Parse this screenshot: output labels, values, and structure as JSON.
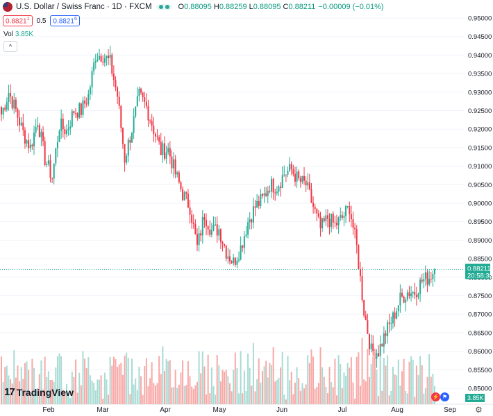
{
  "header": {
    "title": "U.S. Dollar / Swiss Franc · 1D · FXCM",
    "open_label": "O",
    "open": "0.88095",
    "high_label": "H",
    "high": "0.88259",
    "low_label": "L",
    "low": "0.88095",
    "close_label": "C",
    "close": "0.88211",
    "change": "−0.00009 (−0.01%)",
    "sell_price": "0.8821",
    "sell_sup": "1",
    "spread": "0.5",
    "buy_price": "0.8821",
    "buy_sup": "6",
    "vol_label": "Vol",
    "vol_value": "3.85K",
    "collapse_icon": "^"
  },
  "footer": {
    "logo_text": "TradingView",
    "logo_mark": "17"
  },
  "price_axis": {
    "labels": [
      "0.95000",
      "0.94500",
      "0.94000",
      "0.93500",
      "0.93000",
      "0.92500",
      "0.92000",
      "0.91500",
      "0.91000",
      "0.90500",
      "0.90000",
      "0.89500",
      "0.89000",
      "0.88500",
      "0.88000",
      "0.87500",
      "0.87000",
      "0.86500",
      "0.86000",
      "0.85500",
      "0.85000"
    ],
    "current_price": "0.88211",
    "countdown": "20:58:30",
    "volume_tag": "3.85K"
  },
  "time_axis": {
    "labels": [
      "Feb",
      "Mar",
      "Apr",
      "May",
      "Jun",
      "Jul",
      "Aug",
      "Sep"
    ]
  },
  "colors": {
    "up": "#22ab94",
    "down": "#f23645",
    "vol_up": "#a8dbd3",
    "vol_down": "#f7a9a7",
    "grid": "#f0f3fa",
    "text": "#131722"
  },
  "chart_data": {
    "type": "candlestick",
    "symbol": "U.S. Dollar / Swiss Franc",
    "timeframe": "1D",
    "source": "FXCM",
    "ylim": [
      0.848,
      0.9515
    ],
    "close_path": [
      [
        0,
        0.924
      ],
      [
        4,
        0.93
      ],
      [
        8,
        0.925
      ],
      [
        12,
        0.919
      ],
      [
        16,
        0.915
      ],
      [
        20,
        0.9225
      ],
      [
        24,
        0.912
      ],
      [
        28,
        0.907
      ],
      [
        32,
        0.921
      ],
      [
        36,
        0.9195
      ],
      [
        40,
        0.925
      ],
      [
        44,
        0.925
      ],
      [
        48,
        0.929
      ],
      [
        52,
        0.94
      ],
      [
        56,
        0.94
      ],
      [
        60,
        0.938
      ],
      [
        64,
        0.929
      ],
      [
        68,
        0.912
      ],
      [
        72,
        0.92
      ],
      [
        76,
        0.929
      ],
      [
        80,
        0.926
      ],
      [
        84,
        0.92
      ],
      [
        88,
        0.914
      ],
      [
        92,
        0.9145
      ],
      [
        96,
        0.908
      ],
      [
        100,
        0.9025
      ],
      [
        104,
        0.899
      ],
      [
        108,
        0.888
      ],
      [
        112,
        0.897
      ],
      [
        116,
        0.8925
      ],
      [
        120,
        0.893
      ],
      [
        124,
        0.887
      ],
      [
        128,
        0.884
      ],
      [
        132,
        0.888
      ],
      [
        136,
        0.895
      ],
      [
        140,
        0.899
      ],
      [
        144,
        0.901
      ],
      [
        148,
        0.905
      ],
      [
        152,
        0.9045
      ],
      [
        156,
        0.908
      ],
      [
        160,
        0.909
      ],
      [
        164,
        0.906
      ],
      [
        168,
        0.905
      ],
      [
        172,
        0.899
      ],
      [
        176,
        0.893
      ],
      [
        180,
        0.896
      ],
      [
        184,
        0.894
      ],
      [
        188,
        0.896
      ],
      [
        192,
        0.899
      ],
      [
        196,
        0.888
      ],
      [
        200,
        0.871
      ],
      [
        204,
        0.86
      ],
      [
        208,
        0.86
      ],
      [
        212,
        0.865
      ],
      [
        216,
        0.869
      ],
      [
        220,
        0.874
      ],
      [
        224,
        0.876
      ],
      [
        228,
        0.876
      ],
      [
        232,
        0.879
      ],
      [
        236,
        0.88
      ],
      [
        239,
        0.8821
      ]
    ],
    "volume_range": [
      0.2,
      4.3
    ],
    "x_ticks": [
      "Feb",
      "Mar",
      "Apr",
      "May",
      "Jun",
      "Jul",
      "Aug",
      "Sep"
    ],
    "last_close": 0.88211
  }
}
